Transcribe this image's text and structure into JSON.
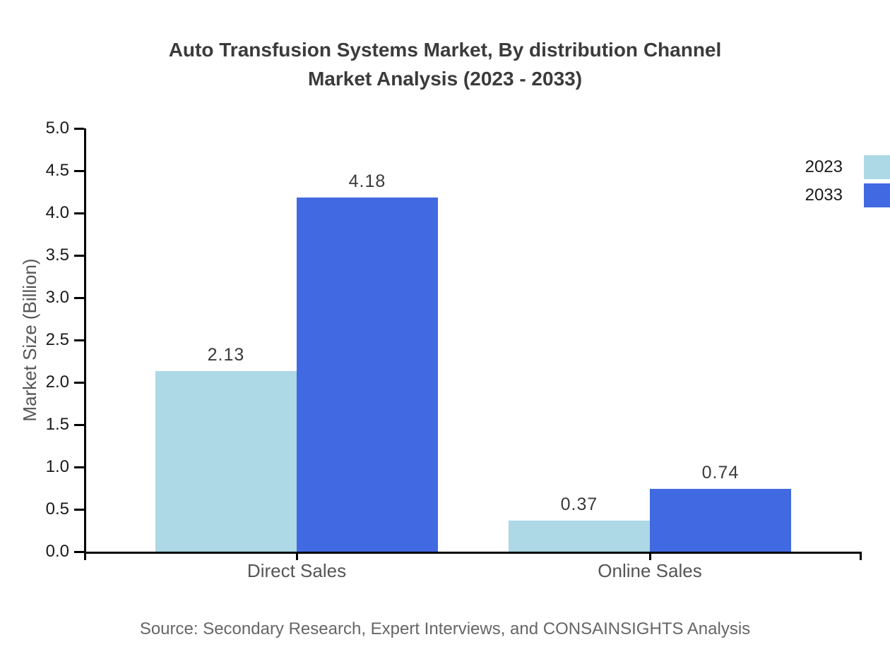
{
  "chart_data": {
    "type": "bar",
    "title_line1": "Auto Transfusion Systems Market, By distribution Channel",
    "title_line2": "Market Analysis (2023 - 2033)",
    "ylabel": "Market Size (Billion)",
    "xlabel": "",
    "categories": [
      "Direct Sales",
      "Online Sales"
    ],
    "series": [
      {
        "name": "2023",
        "color": "#ADD8E6",
        "values": [
          2.13,
          0.37
        ]
      },
      {
        "name": "2033",
        "color": "#4169E1",
        "values": [
          4.18,
          0.74
        ]
      }
    ],
    "value_labels": [
      [
        "2.13",
        "0.37"
      ],
      [
        "4.18",
        "0.74"
      ]
    ],
    "ylim": [
      0.0,
      5.0
    ],
    "ytick_labels": [
      "5.0",
      "4.5",
      "4.0",
      "3.5",
      "3.0",
      "2.5",
      "2.0",
      "1.5",
      "1.0",
      "0.5",
      "0.0"
    ],
    "grid": false,
    "legend_position": "top-right",
    "source": "Source: Secondary Research, Expert Interviews, and CONSAINSIGHTS Analysis"
  },
  "colors": {
    "axis": "#000000",
    "title_text": "#3b3b3b",
    "tick_text": "#1a1a1a",
    "muted_text": "#555555",
    "source_text": "#666666",
    "series_2023": "#ADD8E6",
    "series_2033": "#4169E1"
  }
}
